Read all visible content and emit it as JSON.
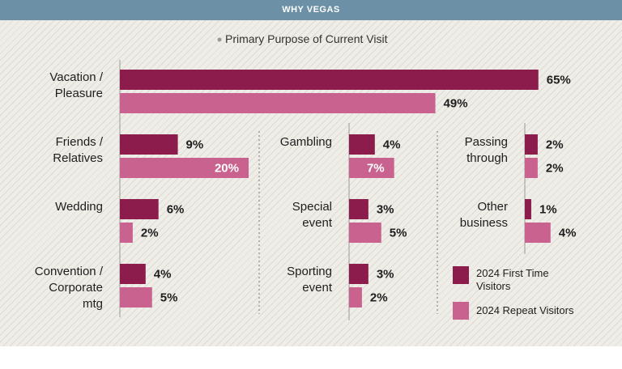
{
  "chart_data": {
    "type": "bar",
    "header": "WHY VEGAS",
    "title": "Primary Purpose of Current Visit",
    "categories": [
      "Vacation /\nPleasure",
      "Friends /\nRelatives",
      "Wedding",
      "Convention /\nCorporate\nmtg",
      "Gambling",
      "Special\nevent",
      "Sporting\nevent",
      "Passing\nthrough",
      "Other\nbusiness"
    ],
    "series": [
      {
        "name": "2024 First Time\nVisitors",
        "color": "#8c1c4b",
        "values": [
          65,
          9,
          6,
          4,
          4,
          3,
          3,
          2,
          1
        ],
        "value_labels": [
          "65%",
          "9%",
          "6%",
          "4%",
          "4%",
          "3%",
          "3%",
          "2%",
          "1%"
        ]
      },
      {
        "name": "2024 Repeat Visitors",
        "color": "#c9628f",
        "values": [
          49,
          20,
          2,
          5,
          7,
          5,
          2,
          2,
          4
        ],
        "value_labels": [
          "49%",
          "20%",
          "2%",
          "5%",
          "7%",
          "5%",
          "2%",
          "2%",
          "4%"
        ]
      }
    ]
  }
}
